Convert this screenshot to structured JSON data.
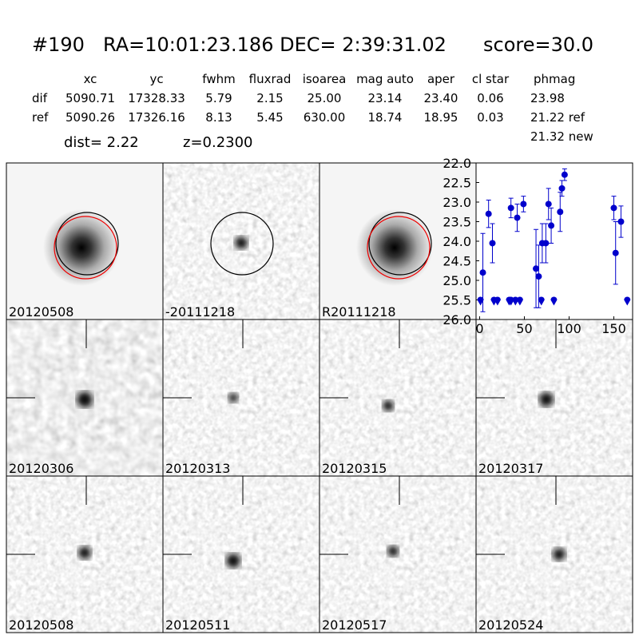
{
  "header": {
    "id": "#190",
    "coords": "RA=10:01:23.186 DEC= 2:39:31.02",
    "score": "score=30.0"
  },
  "table": {
    "columns": [
      "xc",
      "yc",
      "fwhm",
      "fluxrad",
      "isoarea",
      "mag auto",
      "aper",
      "cl star",
      "phmag"
    ],
    "rows": [
      {
        "label": "dif",
        "cells": [
          "5090.71",
          "17328.33",
          "5.79",
          "2.15",
          "25.00",
          "23.14",
          "23.40",
          "0.06",
          "23.98"
        ]
      },
      {
        "label": "ref",
        "cells": [
          "5090.26",
          "17326.16",
          "8.13",
          "5.45",
          "630.00",
          "18.74",
          "18.95",
          "0.03",
          "21.22 ref"
        ]
      }
    ],
    "phmag_new": "21.32 new"
  },
  "dist": "dist=  2.22",
  "redshift": "z=0.2300",
  "stamps": [
    {
      "label": "20120508",
      "color": "#000000"
    },
    {
      "label": "-20111218",
      "color": "#000000"
    },
    {
      "label": "R20111218",
      "color": "#000000"
    },
    {
      "label": "20120306",
      "color": "#000000"
    },
    {
      "label": "20120313",
      "color": "#000000"
    },
    {
      "label": "20120315",
      "color": "#000000"
    },
    {
      "label": "20120317",
      "color": "#000000"
    },
    {
      "label": "20120508",
      "color": "#ff0000"
    },
    {
      "label": "20120511",
      "color": "#000000"
    },
    {
      "label": "20120517",
      "color": "#000000"
    },
    {
      "label": "20120524",
      "color": "#000000"
    }
  ],
  "chart_data": {
    "type": "scatter",
    "xlim": [
      -4,
      171
    ],
    "ylim": [
      26,
      22
    ],
    "xticks": [
      0,
      50,
      100,
      150
    ],
    "yticks": [
      {
        "value": 22,
        "label": "22.0"
      },
      {
        "value": 22.5,
        "label": "22.5"
      },
      {
        "value": 23,
        "label": "23.0"
      },
      {
        "value": 23.5,
        "label": "23.5"
      },
      {
        "value": 24,
        "label": "24.0"
      },
      {
        "value": 24.5,
        "label": "24.5"
      },
      {
        "value": 25,
        "label": "25.0"
      },
      {
        "value": 25.5,
        "label": "25.5"
      },
      {
        "value": 26,
        "label": "26.0"
      }
    ],
    "color": "#0000cc",
    "detections": {
      "x": [
        3.6,
        10,
        14.3,
        35,
        42,
        49,
        63,
        66,
        70,
        74,
        77,
        80,
        90,
        92,
        95,
        150,
        152,
        158
      ],
      "values": [
        24.8,
        23.3,
        24.05,
        23.15,
        23.4,
        23.05,
        24.7,
        24.9,
        24.05,
        24.05,
        23.05,
        23.6,
        23.25,
        22.65,
        22.3,
        23.15,
        24.3,
        23.5
      ],
      "errors": [
        1.0,
        0.35,
        0.5,
        0.25,
        0.35,
        0.2,
        1.0,
        0.8,
        0.5,
        0.5,
        0.4,
        0.45,
        0.5,
        0.2,
        0.15,
        0.3,
        0.8,
        0.4
      ]
    },
    "limits": {
      "x": [
        1,
        16,
        20,
        33,
        35,
        40,
        45,
        69,
        83,
        165
      ],
      "values": [
        25.5,
        25.5,
        25.5,
        25.5,
        25.5,
        25.5,
        25.5,
        25.5,
        25.5,
        25.5
      ]
    }
  }
}
